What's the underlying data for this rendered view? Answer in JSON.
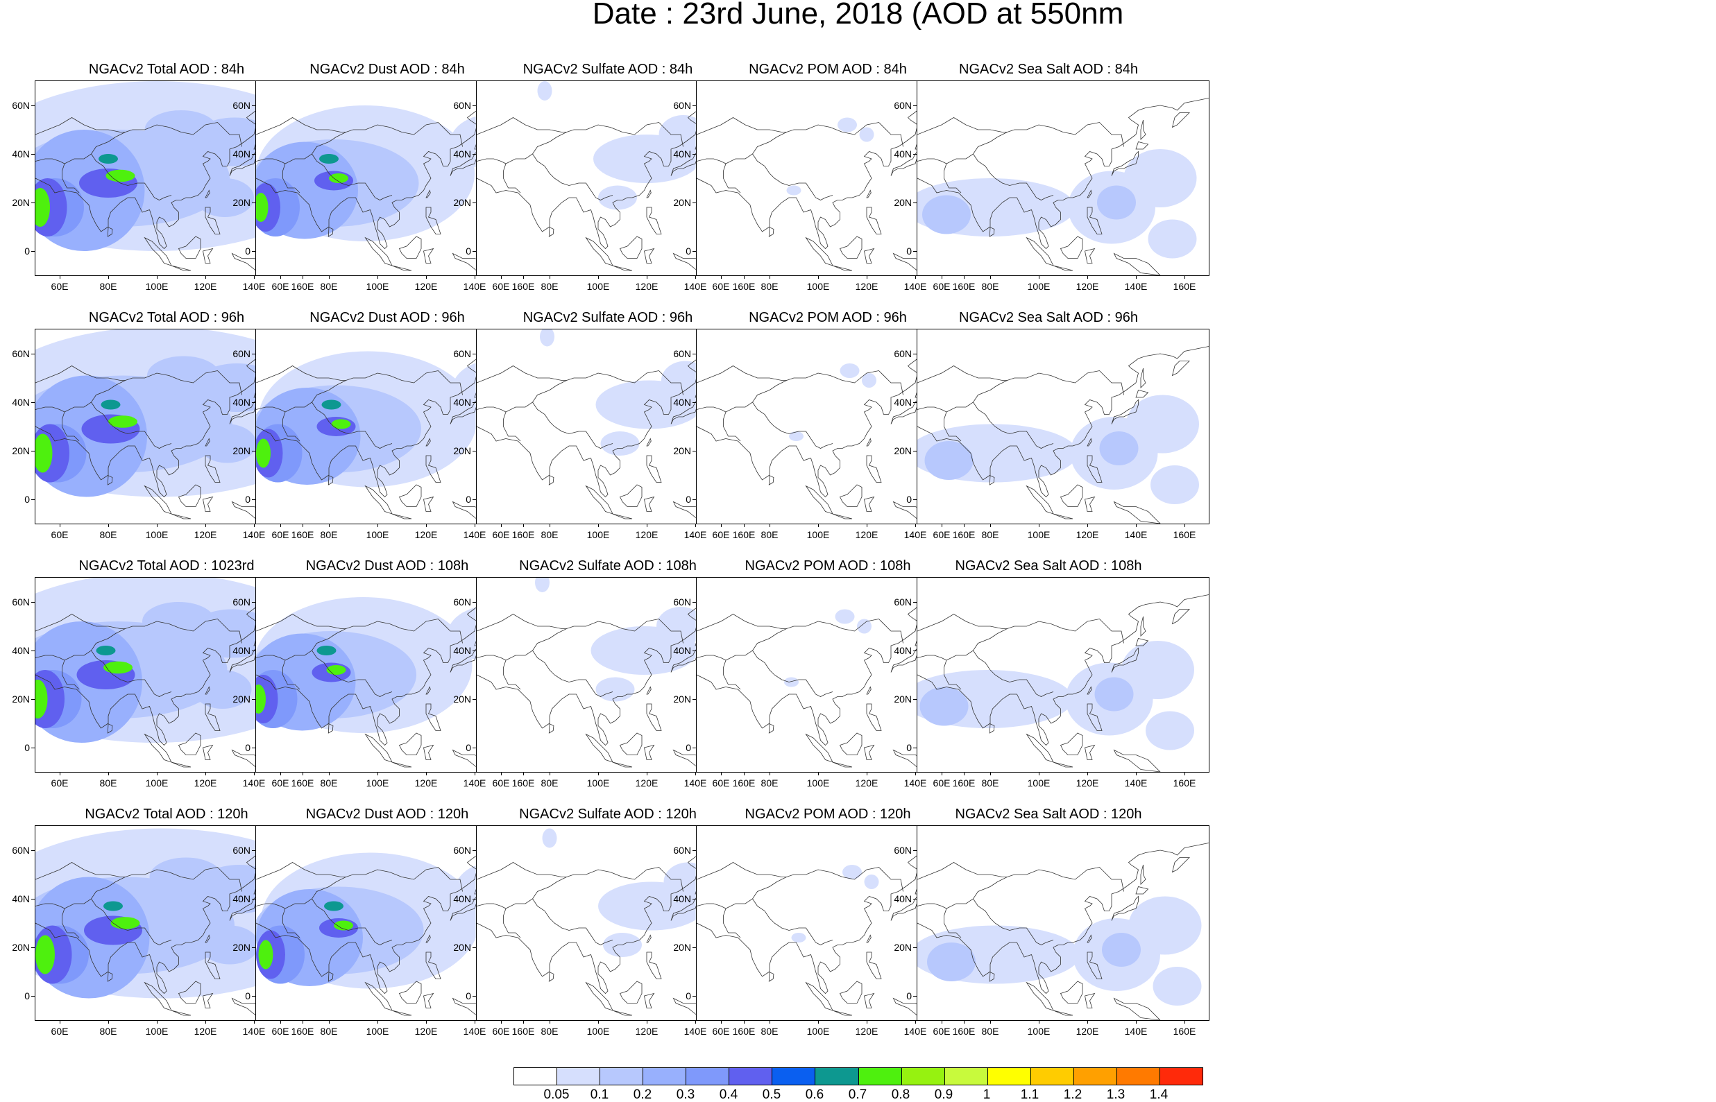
{
  "figure": {
    "title": "Date : 23rd June, 2018 (AOD at 550nm"
  },
  "axes": {
    "x_ticks": [
      "60E",
      "80E",
      "100E",
      "120E",
      "140E",
      "160E"
    ],
    "y_ticks": [
      "60N",
      "40N",
      "20N",
      "0"
    ],
    "x_range_deg_east": [
      50,
      170
    ],
    "y_range_deg_north": [
      -10,
      70
    ]
  },
  "panel_titles": [
    [
      "NGACv2 Total AOD : 84h",
      "NGACv2 Dust AOD : 84h",
      "NGACv2 Sulfate AOD : 84h",
      "NGACv2 POM AOD : 84h",
      "NGACv2 Sea Salt AOD : 84h"
    ],
    [
      "NGACv2 Total AOD : 96h",
      "NGACv2 Dust AOD : 96h",
      "NGACv2 Sulfate AOD : 96h",
      "NGACv2 POM AOD : 96h",
      "NGACv2 Sea Salt AOD : 96h"
    ],
    [
      "NGACv2 Total AOD : 1023rd",
      "NGACv2 Dust AOD : 108h",
      "NGACv2 Sulfate AOD : 108h",
      "NGACv2 POM AOD : 108h",
      "NGACv2 Sea Salt AOD : 108h"
    ],
    [
      "NGACv2 Total AOD : 120h",
      "NGACv2 Dust AOD : 120h",
      "NGACv2 Sulfate AOD : 120h",
      "NGACv2 POM AOD : 120h",
      "NGACv2 Sea Salt  AOD : 120h"
    ]
  ],
  "colorbar": {
    "labels": [
      "0.05",
      "0.1",
      "0.2",
      "0.3",
      "0.4",
      "0.5",
      "0.6",
      "0.7",
      "0.8",
      "0.9",
      "1",
      "1.1",
      "1.2",
      "1.3",
      "1.4"
    ],
    "colors": [
      "#ffffff",
      "#d6dffd",
      "#b7c8fd",
      "#98b0fd",
      "#7f99fb",
      "#6060ef",
      "#0a5ff0",
      "#0d9890",
      "#4ef00e",
      "#96f210",
      "#c8fa3c",
      "#ffff00",
      "#ffcc00",
      "#ffa000",
      "#ff7a00",
      "#ff2a0a"
    ]
  },
  "palette": {
    "coast": "#333333"
  }
}
